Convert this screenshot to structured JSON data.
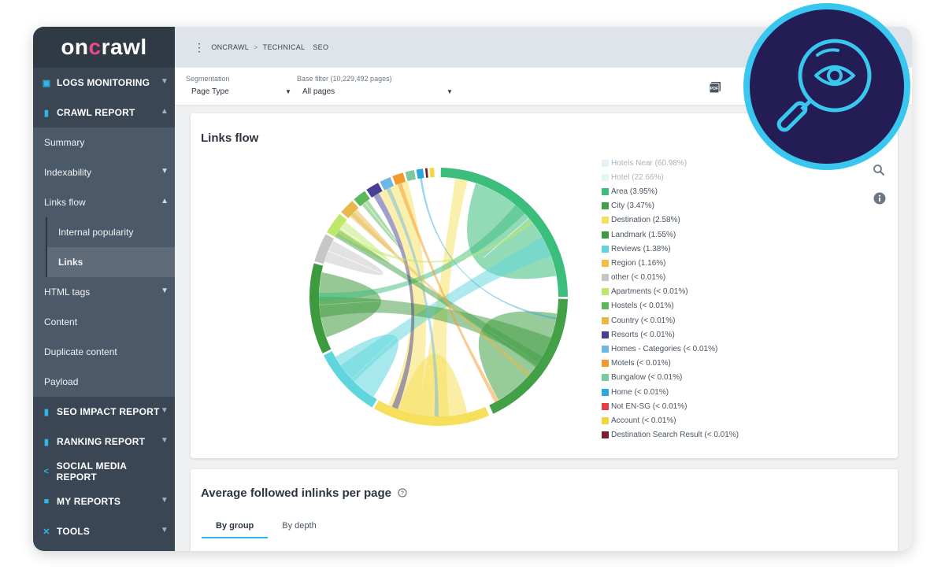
{
  "logo": {
    "part1": "on",
    "part2": "c",
    "part3": "rawl"
  },
  "breadcrumb": {
    "items": [
      "ONCRAWL",
      "TECHNICAL",
      "SEO"
    ]
  },
  "sidebar": {
    "sections": [
      {
        "label": "LOGS MONITORING",
        "icon": "calendar-icon"
      },
      {
        "label": "CRAWL REPORT",
        "icon": "bar-chart-icon"
      },
      {
        "label": "SEO IMPACT REPORT",
        "icon": "bar-chart-icon"
      },
      {
        "label": "RANKING REPORT",
        "icon": "bar-chart-icon"
      },
      {
        "label": "SOCIAL MEDIA REPORT",
        "icon": "share-icon"
      },
      {
        "label": "MY REPORTS",
        "icon": "folder-icon"
      },
      {
        "label": "TOOLS",
        "icon": "tools-icon"
      }
    ],
    "crawl_items": [
      "Summary",
      "Indexability",
      "Links flow",
      "HTML tags",
      "Content",
      "Duplicate content",
      "Payload"
    ],
    "links_flow_items": [
      "Internal popularity",
      "Links"
    ]
  },
  "filters": {
    "segmentation_label": "Segmentation",
    "segmentation_value": "Page Type",
    "base_filter_label": "Base filter (10,229,492 pages)",
    "base_filter_value": "All pages"
  },
  "links_flow": {
    "title": "Links flow",
    "legend": [
      {
        "label": "Hotels Near (60.98%)",
        "color": "#bfe3f7",
        "faded": true
      },
      {
        "label": "Hotel (22.66%)",
        "color": "#c6ece0",
        "faded": true
      },
      {
        "label": "Area (3.95%)",
        "color": "#3bbd7c"
      },
      {
        "label": "City (3.47%)",
        "color": "#43a047"
      },
      {
        "label": "Destination (2.58%)",
        "color": "#f6df5a"
      },
      {
        "label": "Landmark (1.55%)",
        "color": "#3e9a3e"
      },
      {
        "label": "Reviews (1.38%)",
        "color": "#5ed6dc"
      },
      {
        "label": "Region (1.16%)",
        "color": "#f4bd42"
      },
      {
        "label": "other (< 0.01%)",
        "color": "#c6c6c6"
      },
      {
        "label": "Apartments (< 0.01%)",
        "color": "#bfe86a"
      },
      {
        "label": "Hostels (< 0.01%)",
        "color": "#5db85a"
      },
      {
        "label": "Country (< 0.01%)",
        "color": "#e8b84a"
      },
      {
        "label": "Resorts (< 0.01%)",
        "color": "#463f96"
      },
      {
        "label": "Homes - Categories (< 0.01%)",
        "color": "#6db7e6"
      },
      {
        "label": "Motels (< 0.01%)",
        "color": "#f39a2c"
      },
      {
        "label": "Bungalow (< 0.01%)",
        "color": "#7cc99f"
      },
      {
        "label": "Home (< 0.01%)",
        "color": "#2ea7e0"
      },
      {
        "label": "Not EN-SG (< 0.01%)",
        "color": "#e53e45"
      },
      {
        "label": "Account (< 0.01%)",
        "color": "#f6d53a"
      },
      {
        "label": "Destination Search Result (< 0.01%)",
        "color": "#7a1d2e"
      }
    ]
  },
  "inlinks": {
    "title": "Average followed inlinks per page",
    "tabs": [
      "By group",
      "By depth"
    ]
  }
}
